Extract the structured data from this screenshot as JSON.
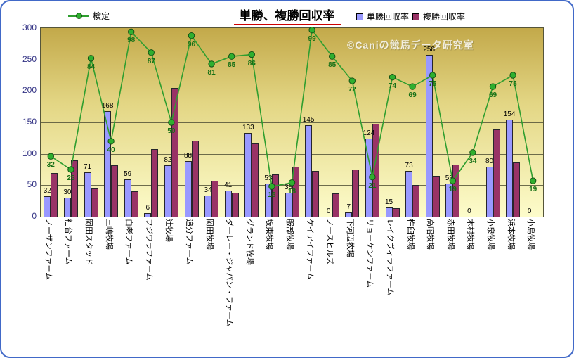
{
  "title": "単勝、複勝回収率",
  "watermark": "©Caniの競馬データ研究室",
  "legend": {
    "line": "検定",
    "win": "単勝回収率",
    "place": "複勝回収率"
  },
  "colors": {
    "win_bar": "#9999FF",
    "place_bar": "#993366",
    "line": "#2F9E2F",
    "marker_fill": "#2FAF2F",
    "marker_edge": "#145214",
    "frame_border": "#4169C8",
    "title_underline": "#CC0000",
    "plot_gradient_top": "#C3A94A",
    "plot_gradient_bottom": "#FDFCCB"
  },
  "chart_data": {
    "type": "combo-bar-line",
    "title": "単勝、複勝回収率",
    "categories": [
      "ノーザンファーム",
      "社台ファーム",
      "岡田スタッド",
      "三嶋牧場",
      "白老ファーム",
      "フジワラファーム",
      "辻牧場",
      "追分ファーム",
      "岡田牧場",
      "ダーレー・ジャパン・ファーム",
      "グランド牧場",
      "坂東牧場",
      "服部牧場",
      "ケイアイファーム",
      "ノースヒルズ",
      "下河辺牧場",
      "リョーケンファーム",
      "レイクヴィラファーム",
      "杵臼牧場",
      "高昭牧場",
      "赤田牧場",
      "木村牧場",
      "小泉牧場",
      "浜本牧場",
      "小島牧場"
    ],
    "series": [
      {
        "name": "単勝回収率",
        "type": "bar",
        "color": "#9999FF",
        "labels_shown": true,
        "values": [
          32,
          30,
          71,
          168,
          59,
          6,
          82,
          88,
          34,
          41,
          133,
          53,
          38,
          145,
          0,
          7,
          124,
          15,
          73,
          258,
          53,
          0,
          80,
          154,
          0
        ]
      },
      {
        "name": "複勝回収率",
        "type": "bar",
        "color": "#993366",
        "labels_shown": false,
        "values": [
          69,
          90,
          45,
          82,
          40,
          107,
          205,
          121,
          57,
          38,
          116,
          67,
          80,
          73,
          37,
          75,
          148,
          13,
          50,
          65,
          83,
          0,
          139,
          86,
          0
        ]
      },
      {
        "name": "検定",
        "type": "line",
        "color": "#2F9E2F",
        "labels_shown": true,
        "axis": "secondary",
        "values": [
          32,
          25,
          84,
          40,
          98,
          87,
          50,
          96,
          81,
          85,
          86,
          16,
          18,
          99,
          85,
          72,
          21,
          74,
          69,
          75,
          19,
          34,
          69,
          75,
          19
        ]
      }
    ],
    "primary_ylim": [
      0,
      300
    ],
    "primary_yticks": [
      0,
      50,
      100,
      150,
      200,
      250,
      300
    ],
    "secondary_ylim": [
      0,
      100
    ],
    "grid": true,
    "legend_position": "top"
  }
}
